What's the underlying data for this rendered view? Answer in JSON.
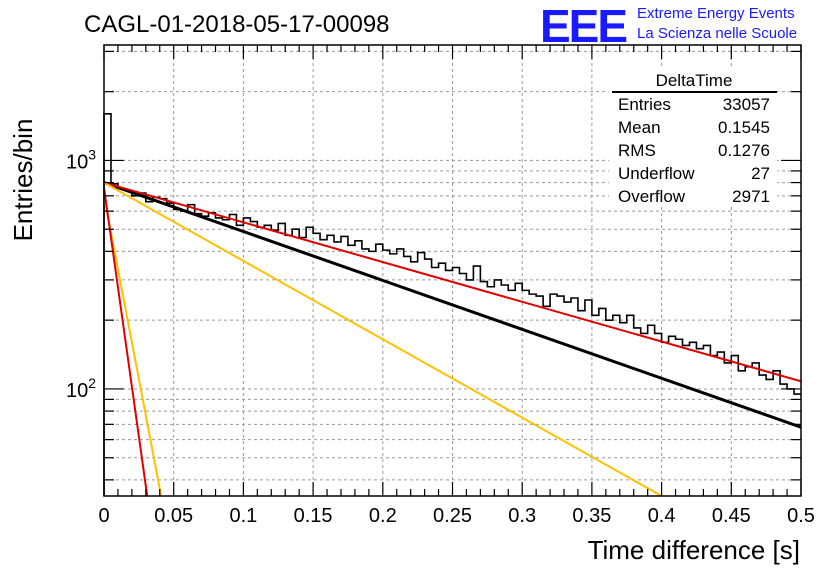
{
  "title": "CAGL-01-2018-05-17-00098",
  "logo": {
    "mark": "EEE",
    "line1": "Extreme Energy Events",
    "line2": "La Scienza nelle Scuole",
    "color": "#1a1aff"
  },
  "stats_box": {
    "name": "DeltaTime",
    "rows": [
      {
        "label": "Entries",
        "value": "33057"
      },
      {
        "label": "Mean",
        "value": "0.1545"
      },
      {
        "label": "RMS",
        "value": "0.1276"
      },
      {
        "label": "Underflow",
        "value": "27"
      },
      {
        "label": "Overflow",
        "value": "2971"
      }
    ]
  },
  "chart_data": {
    "type": "histogram",
    "title": "CAGL-01-2018-05-17-00098",
    "xlabel": "Time difference [s]",
    "ylabel": "Entries/bin",
    "xlim": [
      0,
      0.5
    ],
    "ylim": [
      34,
      3200
    ],
    "y_scale": "log",
    "grid": true,
    "x_ticks": [
      "0",
      "0.05",
      "0.1",
      "0.15",
      "0.2",
      "0.25",
      "0.3",
      "0.35",
      "0.4",
      "0.45",
      "0.5"
    ],
    "x_tick_values": [
      0,
      0.05,
      0.1,
      0.15,
      0.2,
      0.25,
      0.3,
      0.35,
      0.4,
      0.45,
      0.5
    ],
    "y_ticks": [
      "10^2",
      "10^3"
    ],
    "y_tick_values": [
      100,
      1000
    ],
    "bin_width": 0.005,
    "bin_values": [
      1600,
      790,
      755,
      740,
      700,
      720,
      660,
      690,
      680,
      650,
      610,
      600,
      640,
      585,
      570,
      590,
      560,
      550,
      580,
      520,
      560,
      540,
      510,
      520,
      495,
      530,
      470,
      500,
      460,
      510,
      480,
      450,
      470,
      440,
      465,
      425,
      445,
      410,
      400,
      430,
      405,
      390,
      410,
      380,
      360,
      395,
      370,
      340,
      355,
      330,
      340,
      320,
      300,
      345,
      295,
      280,
      300,
      285,
      270,
      290,
      270,
      260,
      255,
      230,
      260,
      255,
      240,
      250,
      220,
      245,
      210,
      225,
      200,
      210,
      195,
      210,
      185,
      175,
      190,
      175,
      160,
      170,
      165,
      155,
      160,
      150,
      155,
      140,
      145,
      130,
      140,
      120,
      125,
      130,
      115,
      110,
      120,
      105,
      100,
      95
    ],
    "series": [
      {
        "name": "fit",
        "color": "#000000",
        "kind": "line",
        "x": [
          0,
          0.5
        ],
        "y": [
          800,
          68
        ]
      },
      {
        "name": "",
        "color": "#e00000",
        "kind": "line",
        "x": [
          0,
          0.5
        ],
        "y": [
          800,
          108
        ]
      },
      {
        "name": "",
        "color": "#ffc000",
        "kind": "line",
        "x": [
          0,
          0.4
        ],
        "y": [
          800,
          34
        ]
      },
      {
        "name": "",
        "color": "#ffc000",
        "kind": "line",
        "x": [
          0,
          0.041
        ],
        "y": [
          700,
          34
        ]
      },
      {
        "name": "",
        "color": "#e00000",
        "kind": "line",
        "x": [
          0,
          0.031
        ],
        "y": [
          760,
          34
        ]
      }
    ]
  }
}
